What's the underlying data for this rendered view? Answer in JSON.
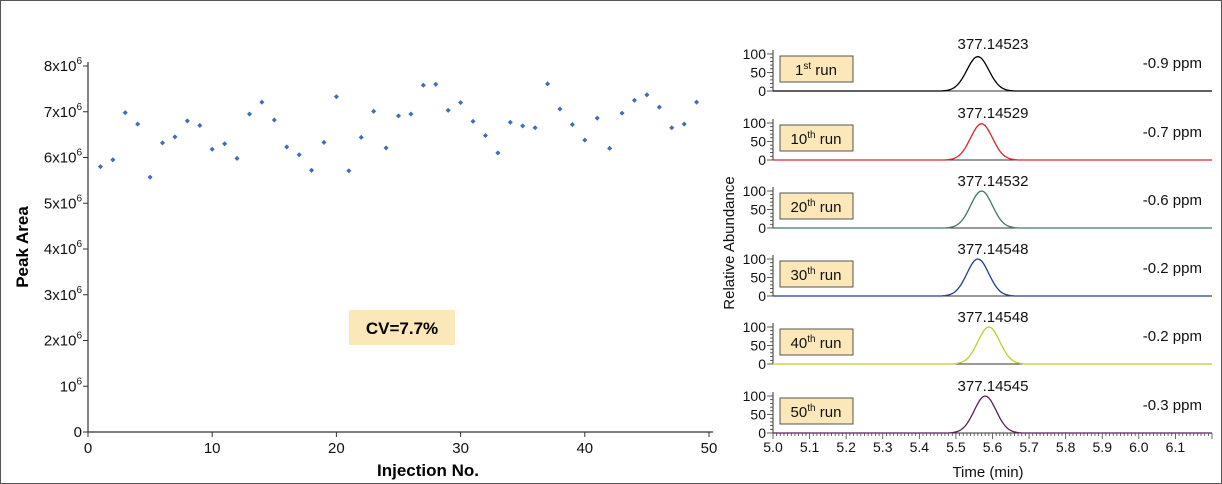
{
  "chart_data": [
    {
      "type": "scatter",
      "xlabel": "Injection No.",
      "ylabel": "Peak Area",
      "xlim": [
        0,
        50
      ],
      "ylim": [
        0,
        8000000
      ],
      "x_ticks": [
        "0",
        "10",
        "20",
        "30",
        "40",
        "50"
      ],
      "y_ticks": [
        {
          "base": "0",
          "sup": ""
        },
        {
          "base": "10",
          "sup": "6"
        },
        {
          "base": "2x10",
          "sup": "6"
        },
        {
          "base": "3x10",
          "sup": "6"
        },
        {
          "base": "4x10",
          "sup": "6"
        },
        {
          "base": "5x10",
          "sup": "6"
        },
        {
          "base": "6x10",
          "sup": "6"
        },
        {
          "base": "7x10",
          "sup": "6"
        },
        {
          "base": "8x10",
          "sup": "6"
        }
      ],
      "point_color": "#3f6fb8",
      "annotation": "CV=7.7%",
      "annotation_bg": "#fbe7b8",
      "x": [
        1,
        2,
        3,
        4,
        5,
        6,
        7,
        8,
        9,
        10,
        11,
        12,
        13,
        14,
        15,
        16,
        17,
        18,
        19,
        20,
        21,
        22,
        23,
        24,
        25,
        26,
        27,
        28,
        29,
        30,
        31,
        32,
        33,
        34,
        35,
        36,
        37,
        38,
        39,
        40,
        41,
        42,
        43,
        44,
        45,
        46,
        47,
        48,
        49
      ],
      "y": [
        5800000,
        5950000,
        6980000,
        6730000,
        5570000,
        6320000,
        6450000,
        6800000,
        6700000,
        6180000,
        6300000,
        5980000,
        6950000,
        7210000,
        6820000,
        6230000,
        6060000,
        5720000,
        6330000,
        7330000,
        5710000,
        6440000,
        7010000,
        6210000,
        6910000,
        6950000,
        7580000,
        7600000,
        7030000,
        7200000,
        6790000,
        6480000,
        6100000,
        6770000,
        6690000,
        6650000,
        7610000,
        7060000,
        6720000,
        6380000,
        6860000,
        6200000,
        6970000,
        7250000,
        7370000,
        7100000,
        6650000,
        6730000,
        7210000
      ]
    },
    {
      "type": "line",
      "xlabel": "Time (min)",
      "ylabel": "Relative Abundance",
      "xlim": [
        5.0,
        6.2
      ],
      "x_ticks": [
        "5.0",
        "5.1",
        "5.2",
        "5.3",
        "5.4",
        "5.5",
        "5.6",
        "5.7",
        "5.8",
        "5.9",
        "6.0",
        "6.1"
      ],
      "y_ticks": [
        "0",
        "50",
        "100"
      ],
      "label_bg": "#fbe7b8",
      "panels": [
        {
          "run_num": "1",
          "run_sup": "st",
          "run_suffix": " run",
          "mass": "377.14523",
          "ppm": "-0.9 ppm",
          "color": "#000000",
          "peak_rt": 5.56,
          "peak_height": 93
        },
        {
          "run_num": "10",
          "run_sup": "th",
          "run_suffix": " run",
          "mass": "377.14529",
          "ppm": "-0.7 ppm",
          "color": "#d7262b",
          "peak_rt": 5.57,
          "peak_height": 98
        },
        {
          "run_num": "20",
          "run_sup": "th",
          "run_suffix": " run",
          "mass": "377.14532",
          "ppm": "-0.6 ppm",
          "color": "#3e7a5e",
          "peak_rt": 5.57,
          "peak_height": 100
        },
        {
          "run_num": "30",
          "run_sup": "th",
          "run_suffix": " run",
          "mass": "377.14548",
          "ppm": "-0.2 ppm",
          "color": "#1f3f8f",
          "peak_rt": 5.56,
          "peak_height": 100
        },
        {
          "run_num": "40",
          "run_sup": "th",
          "run_suffix": " run",
          "mass": "377.14548",
          "ppm": "-0.2 ppm",
          "color": "#c2cc2a",
          "peak_rt": 5.59,
          "peak_height": 100
        },
        {
          "run_num": "50",
          "run_sup": "th",
          "run_suffix": " run",
          "mass": "377.14545",
          "ppm": "-0.3 ppm",
          "color": "#5b1f5f",
          "peak_rt": 5.58,
          "peak_height": 100
        }
      ]
    }
  ]
}
